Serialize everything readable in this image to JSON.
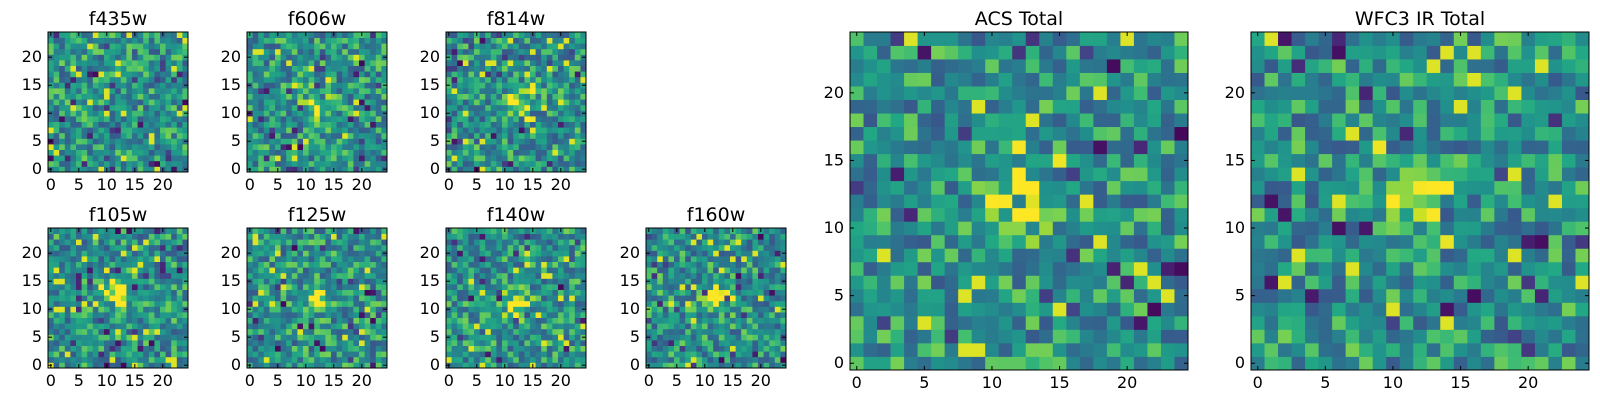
{
  "chart_data": {
    "type": "heatmap",
    "colormap": "viridis",
    "grid": false,
    "panels": [
      {
        "title": "f435w",
        "x_ticks": [
          0,
          5,
          10,
          15,
          20
        ],
        "y_ticks": [
          0,
          5,
          10,
          15,
          20
        ],
        "xlim": [
          -0.5,
          24.5
        ],
        "ylim": [
          -0.5,
          24.5
        ],
        "grid_size": 25,
        "peak": null
      },
      {
        "title": "f606w",
        "x_ticks": [
          0,
          5,
          10,
          15,
          20
        ],
        "y_ticks": [
          0,
          5,
          10,
          15,
          20
        ],
        "xlim": [
          -0.5,
          24.5
        ],
        "ylim": [
          -0.5,
          24.5
        ],
        "grid_size": 25,
        "peak": [
          12,
          12
        ]
      },
      {
        "title": "f814w",
        "x_ticks": [
          0,
          5,
          10,
          15,
          20
        ],
        "y_ticks": [
          0,
          5,
          10,
          15,
          20
        ],
        "xlim": [
          -0.5,
          24.5
        ],
        "ylim": [
          -0.5,
          24.5
        ],
        "grid_size": 25,
        "peak": [
          12,
          12
        ]
      },
      {
        "title": "f105w",
        "x_ticks": [
          0,
          5,
          10,
          15,
          20
        ],
        "y_ticks": [
          0,
          5,
          10,
          15,
          20
        ],
        "xlim": [
          -0.5,
          24.5
        ],
        "ylim": [
          -0.5,
          24.5
        ],
        "grid_size": 25,
        "peak": [
          12,
          13
        ]
      },
      {
        "title": "f125w",
        "x_ticks": [
          0,
          5,
          10,
          15,
          20
        ],
        "y_ticks": [
          0,
          5,
          10,
          15,
          20
        ],
        "xlim": [
          -0.5,
          24.5
        ],
        "ylim": [
          -0.5,
          24.5
        ],
        "grid_size": 25,
        "peak": [
          12,
          12
        ]
      },
      {
        "title": "f140w",
        "x_ticks": [
          0,
          5,
          10,
          15,
          20
        ],
        "y_ticks": [
          0,
          5,
          10,
          15,
          20
        ],
        "xlim": [
          -0.5,
          24.5
        ],
        "ylim": [
          -0.5,
          24.5
        ],
        "grid_size": 25,
        "peak": [
          12,
          11
        ]
      },
      {
        "title": "f160w",
        "x_ticks": [
          0,
          5,
          10,
          15,
          20
        ],
        "y_ticks": [
          0,
          5,
          10,
          15,
          20
        ],
        "xlim": [
          -0.5,
          24.5
        ],
        "ylim": [
          -0.5,
          24.5
        ],
        "grid_size": 25,
        "peak": [
          12,
          12
        ]
      },
      {
        "title": "ACS Total",
        "x_ticks": [
          0,
          5,
          10,
          15,
          20
        ],
        "y_ticks": [
          0,
          5,
          10,
          15,
          20
        ],
        "xlim": [
          -0.5,
          24.5
        ],
        "ylim": [
          -0.5,
          24.5
        ],
        "grid_size": 25,
        "peak": [
          12,
          12
        ]
      },
      {
        "title": "WFC3 IR Total",
        "x_ticks": [
          0,
          5,
          10,
          15,
          20
        ],
        "y_ticks": [
          0,
          5,
          10,
          15,
          20
        ],
        "xlim": [
          -0.5,
          24.5
        ],
        "ylim": [
          -0.5,
          24.5
        ],
        "grid_size": 25,
        "peak": [
          12,
          13
        ]
      }
    ]
  }
}
